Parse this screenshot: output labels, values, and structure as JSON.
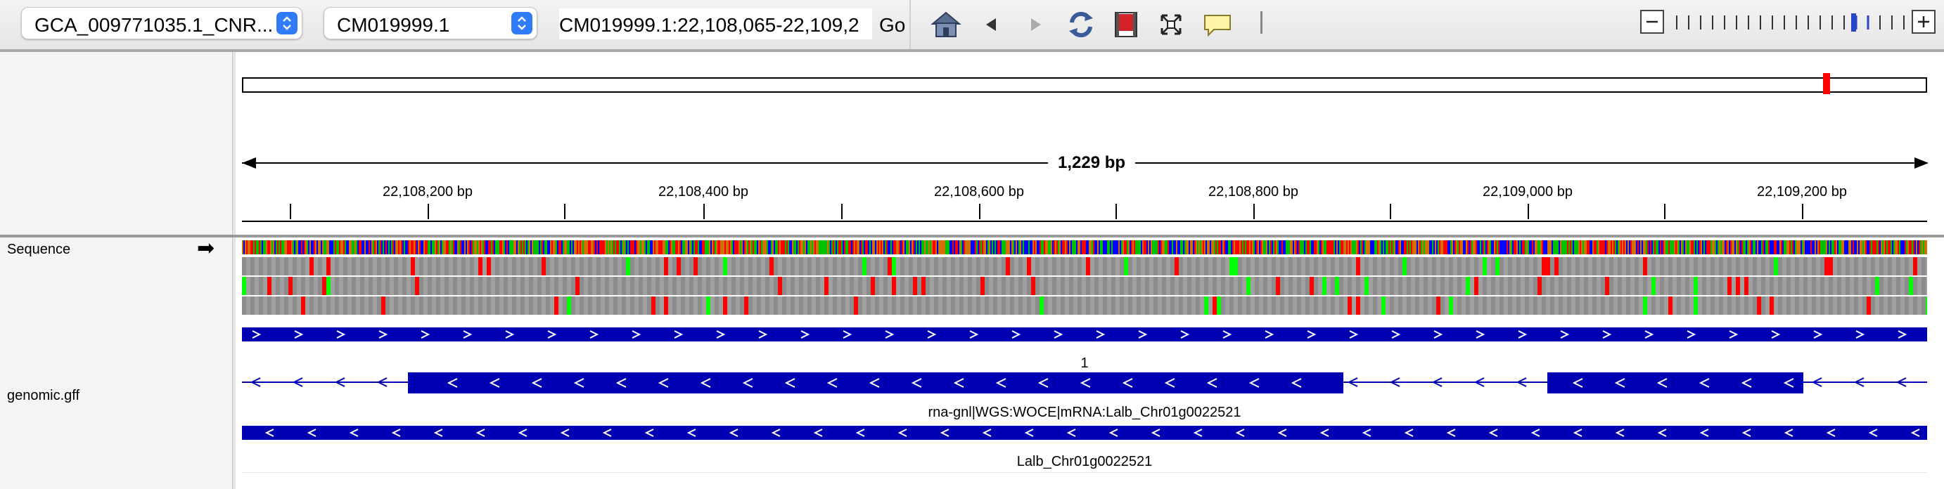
{
  "toolbar": {
    "genome_select": "GCA_009771035.1_CNR...",
    "chromosome_select": "CM019999.1",
    "locus_input": "CM019999.1:22,108,065-22,109,2",
    "go_label": "Go",
    "icons": [
      "home-icon",
      "back-icon",
      "forward-icon",
      "refresh-icon",
      "region-of-interest-icon",
      "fit-to-window-icon",
      "popup-text-icon"
    ]
  },
  "ruler": {
    "span_label": "1,229 bp",
    "ticks": [
      "22,108,200 bp",
      "22,108,400 bp",
      "22,108,600 bp",
      "22,108,800 bp",
      "22,109,000 bp",
      "22,109,200 bp"
    ]
  },
  "tracks": {
    "sequence_label": "Sequence",
    "sequence_arrow": "➡",
    "gff_label": "genomic.gff",
    "mrna_number": "1",
    "mrna_name": "rna-gnl|WGS:WOCE|mRNA:Lalb_Chr01g0022521",
    "gene_name": "Lalb_Chr01g0022521"
  },
  "colors": {
    "feature_blue": "#0000b2",
    "base_A": "#00c000",
    "base_C": "#0000ff",
    "base_G": "#d17105",
    "base_T": "#ff0000"
  }
}
